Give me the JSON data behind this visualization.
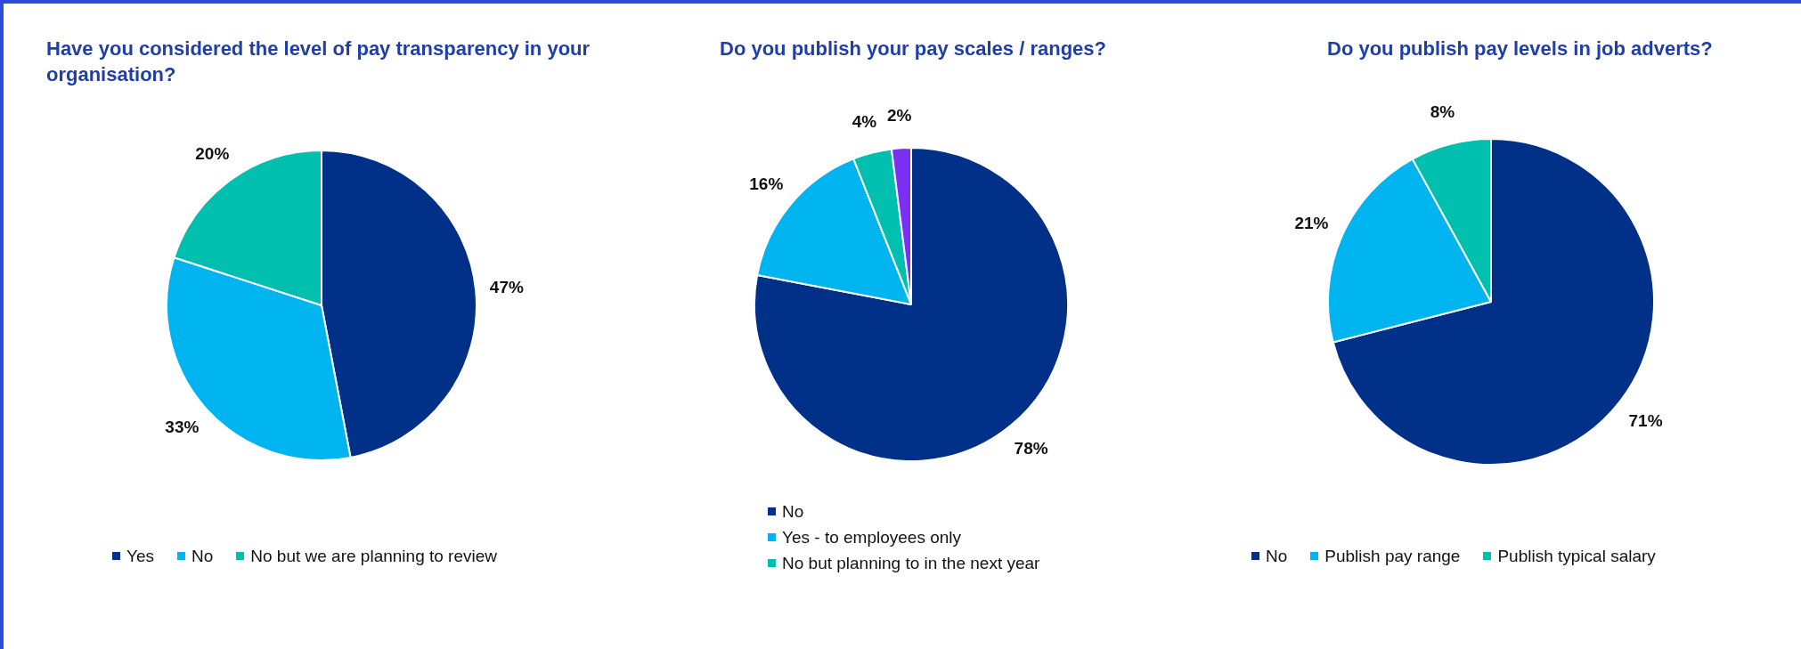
{
  "chart_data": [
    {
      "type": "pie",
      "title": "Have you considered the level of pay transparency in your organisation?",
      "categories": [
        "Yes",
        "No",
        "No but we are planning to review"
      ],
      "values": [
        47,
        33,
        20
      ],
      "colors": [
        "#003087",
        "#00b5ef",
        "#00bfae"
      ],
      "value_labels": [
        "47%",
        "33%",
        "20%"
      ],
      "legend": "bottom"
    },
    {
      "type": "pie",
      "title": "Do you publish your pay scales / ranges?",
      "categories": [
        "No",
        "Yes - to employees only",
        "No but planning to in the next year",
        null
      ],
      "values": [
        78,
        16,
        4,
        2
      ],
      "colors": [
        "#003087",
        "#00b5ef",
        "#00bfae",
        "#7b2ff2"
      ],
      "value_labels": [
        "78%",
        "16%",
        "4%",
        "2%"
      ],
      "legend": "bottom"
    },
    {
      "type": "pie",
      "title": "Do you publish pay levels in job adverts?",
      "categories": [
        "No",
        "Publish pay range",
        "Publish typical salary"
      ],
      "values": [
        71,
        21,
        8
      ],
      "colors": [
        "#003087",
        "#00b5ef",
        "#00bfae"
      ],
      "value_labels": [
        "71%",
        "21%",
        "8%"
      ],
      "legend": "bottom"
    }
  ]
}
